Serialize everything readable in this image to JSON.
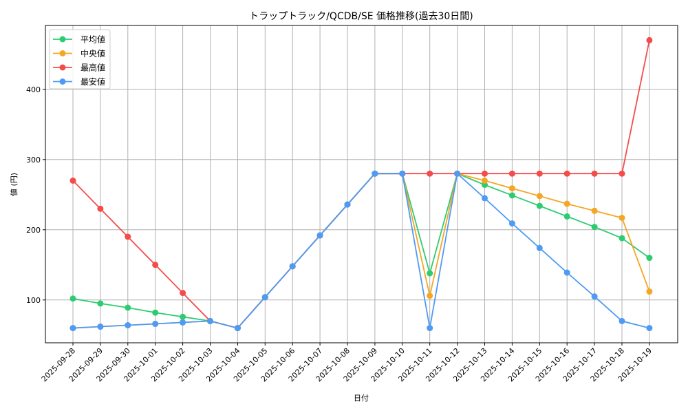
{
  "chart_data": {
    "type": "line",
    "title": "トラップトラック/QCDB/SE 価格推移(過去30日間)",
    "xlabel": "日付",
    "ylabel": "値 (円)",
    "ylim": [
      39,
      491
    ],
    "yticks": [
      100,
      200,
      300,
      400
    ],
    "grid": true,
    "legend_position": "upper left",
    "categories": [
      "2025-09-28",
      "2025-09-29",
      "2025-09-30",
      "2025-10-01",
      "2025-10-02",
      "2025-10-03",
      "2025-10-04",
      "2025-10-05",
      "2025-10-06",
      "2025-10-07",
      "2025-10-08",
      "2025-10-09",
      "2025-10-10",
      "2025-10-11",
      "2025-10-12",
      "2025-10-13",
      "2025-10-14",
      "2025-10-15",
      "2025-10-16",
      "2025-10-17",
      "2025-10-18",
      "2025-10-19"
    ],
    "series": [
      {
        "name": "平均値",
        "color": "#2ecc71",
        "values": [
          102,
          95,
          89,
          82,
          76,
          70,
          60,
          104,
          148,
          192,
          236,
          280,
          280,
          138,
          280,
          264,
          249,
          234,
          219,
          204,
          188,
          160
        ]
      },
      {
        "name": "中央値",
        "color": "#f5a623",
        "values": [
          60,
          62,
          64,
          66,
          68,
          70,
          60,
          104,
          148,
          192,
          236,
          280,
          280,
          106,
          280,
          270,
          259,
          248,
          237,
          227,
          217,
          112
        ]
      },
      {
        "name": "最高値",
        "color": "#f44b4b",
        "values": [
          270,
          230,
          190,
          150,
          110,
          70,
          60,
          104,
          148,
          192,
          236,
          280,
          280,
          280,
          280,
          280,
          280,
          280,
          280,
          280,
          280,
          470
        ]
      },
      {
        "name": "最安値",
        "color": "#4d9bf5",
        "values": [
          60,
          62,
          64,
          66,
          68,
          70,
          60,
          104,
          148,
          192,
          236,
          280,
          280,
          60,
          280,
          245,
          209,
          174,
          139,
          105,
          70,
          60
        ]
      }
    ]
  }
}
